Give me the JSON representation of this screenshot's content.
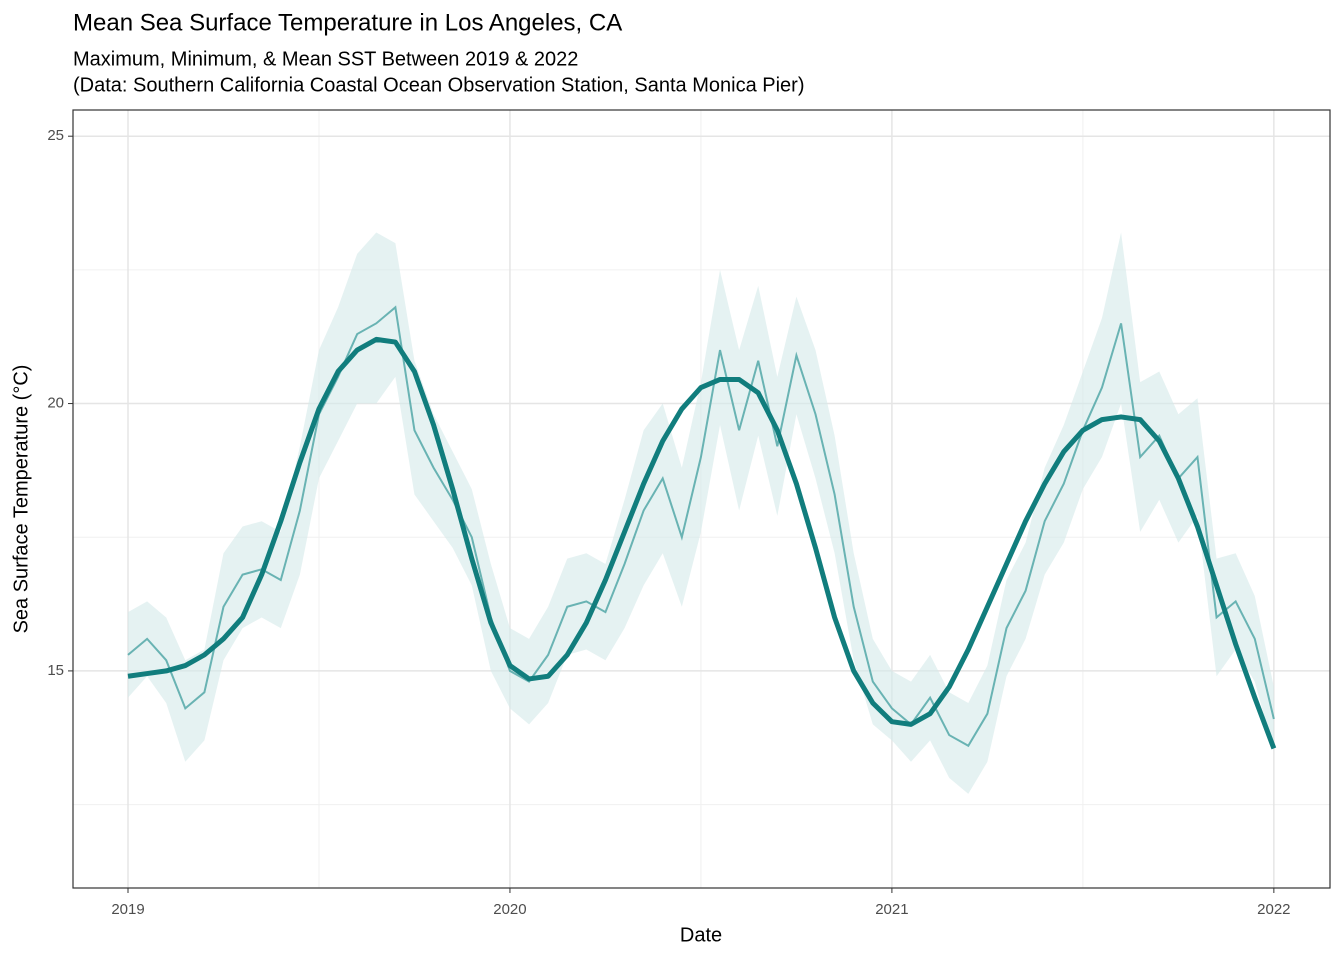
{
  "chart_data": {
    "type": "line",
    "title": "Mean Sea Surface Temperature in Los Angeles, CA",
    "subtitle": [
      "Maximum, Minimum, & Mean SST Between 2019 & 2022",
      "(Data: Southern California Coastal Ocean Observation Station, Santa Monica Pier)"
    ],
    "x_label": "Date",
    "y_label": "Sea Surface Temperature (°C)",
    "x": [
      2019,
      2019.05,
      2019.1,
      2019.15,
      2019.2,
      2019.25,
      2019.3,
      2019.35,
      2019.4,
      2019.45,
      2019.5,
      2019.55,
      2019.6,
      2019.65,
      2019.7,
      2019.75,
      2019.8,
      2019.85,
      2019.9,
      2019.95,
      2020,
      2020.05,
      2020.1,
      2020.15,
      2020.2,
      2020.25,
      2020.3,
      2020.35,
      2020.4,
      2020.45,
      2020.5,
      2020.55,
      2020.6,
      2020.65,
      2020.7,
      2020.75,
      2020.8,
      2020.85,
      2020.9,
      2020.95,
      2021,
      2021.05,
      2021.1,
      2021.15,
      2021.2,
      2021.25,
      2021.3,
      2021.35,
      2021.4,
      2021.45,
      2021.5,
      2021.55,
      2021.6,
      2021.65,
      2021.7,
      2021.75,
      2021.8,
      2021.85,
      2021.9,
      2021.95,
      2022
    ],
    "series": [
      {
        "kind": "ribbon",
        "color": "#d3eaea",
        "upper": [
          16.1,
          16.3,
          16.0,
          15.2,
          15.4,
          17.2,
          17.7,
          17.8,
          17.6,
          19.2,
          21.0,
          21.8,
          22.8,
          23.2,
          23.0,
          20.8,
          19.8,
          19.1,
          18.4,
          17.0,
          15.8,
          15.6,
          16.2,
          17.1,
          17.2,
          17.0,
          18.2,
          19.5,
          20.0,
          18.8,
          20.4,
          22.5,
          21.0,
          22.2,
          20.5,
          22.0,
          21.0,
          19.4,
          17.2,
          15.6,
          15.0,
          14.8,
          15.3,
          14.6,
          14.4,
          15.1,
          16.7,
          17.4,
          18.8,
          19.6,
          20.6,
          21.6,
          23.2,
          20.4,
          20.6,
          19.8,
          20.1,
          17.1,
          17.2,
          16.4,
          14.7
        ],
        "lower": [
          14.5,
          14.9,
          14.4,
          13.3,
          13.7,
          15.2,
          15.8,
          16.0,
          15.8,
          16.8,
          18.6,
          19.3,
          20.0,
          20.0,
          20.5,
          18.3,
          17.8,
          17.3,
          16.6,
          15.0,
          14.3,
          14.0,
          14.4,
          15.3,
          15.4,
          15.2,
          15.8,
          16.6,
          17.2,
          16.2,
          17.6,
          19.6,
          18.0,
          19.4,
          17.9,
          19.8,
          18.6,
          17.2,
          15.2,
          14.0,
          13.7,
          13.3,
          13.7,
          13.0,
          12.7,
          13.3,
          14.9,
          15.6,
          16.8,
          17.4,
          18.4,
          19.0,
          20.0,
          17.6,
          18.2,
          17.4,
          17.9,
          14.9,
          15.4,
          14.8,
          13.5
        ]
      },
      {
        "kind": "line",
        "color": "#4aa3a3",
        "values": [
          15.3,
          15.6,
          15.2,
          14.3,
          14.6,
          16.2,
          16.8,
          16.9,
          16.7,
          18.0,
          19.8,
          20.5,
          21.3,
          21.5,
          21.8,
          19.5,
          18.8,
          18.2,
          17.5,
          16.0,
          15.0,
          14.8,
          15.3,
          16.2,
          16.3,
          16.1,
          17.0,
          18.0,
          18.6,
          17.5,
          19.0,
          21.0,
          19.5,
          20.8,
          19.2,
          20.9,
          19.8,
          18.3,
          16.2,
          14.8,
          14.3,
          14.0,
          14.5,
          13.8,
          13.6,
          14.2,
          15.8,
          16.5,
          17.8,
          18.5,
          19.5,
          20.3,
          21.5,
          19.0,
          19.4,
          18.6,
          19.0,
          16.0,
          16.3,
          15.6,
          14.1
        ]
      },
      {
        "kind": "smooth",
        "color": "#117d7d",
        "values": [
          14.9,
          14.95,
          15.0,
          15.1,
          15.3,
          15.6,
          16.0,
          16.8,
          17.8,
          18.9,
          19.9,
          20.6,
          21.0,
          21.2,
          21.15,
          20.6,
          19.6,
          18.4,
          17.1,
          15.9,
          15.1,
          14.85,
          14.9,
          15.3,
          15.9,
          16.7,
          17.6,
          18.5,
          19.3,
          19.9,
          20.3,
          20.45,
          20.45,
          20.2,
          19.5,
          18.5,
          17.3,
          16.0,
          15.0,
          14.4,
          14.05,
          14.0,
          14.2,
          14.7,
          15.4,
          16.2,
          17.0,
          17.8,
          18.5,
          19.1,
          19.5,
          19.7,
          19.75,
          19.7,
          19.3,
          18.6,
          17.7,
          16.6,
          15.5,
          14.5,
          13.55
        ]
      }
    ],
    "xlim": [
      2018.856,
      2022.147
    ],
    "xticks": [
      2019,
      2020,
      2021,
      2022
    ],
    "xminorticks": [
      2019.5,
      2020.5,
      2021.5
    ],
    "ylim": [
      10.94,
      25.49
    ],
    "yticks": [
      15,
      20,
      25
    ],
    "yminorticks": [
      12.5,
      17.5,
      22.5
    ],
    "grid": true
  }
}
